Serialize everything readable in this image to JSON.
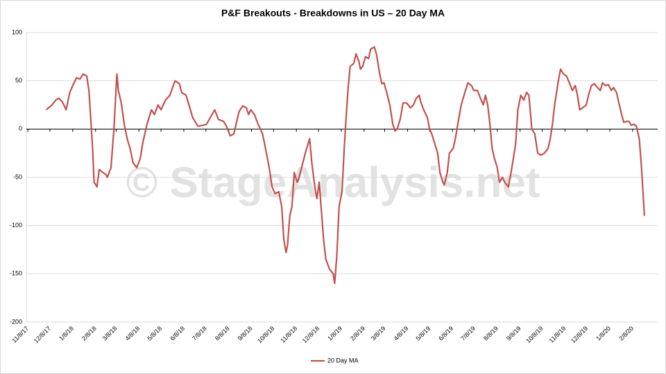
{
  "chart_data": {
    "type": "line",
    "title": "P&F Breakouts - Breakdowns in US – 20 Day MA",
    "watermark": "© StageAnalysis.net",
    "x": [
      "12/3/17",
      "12/11/17",
      "12/16/17",
      "12/20/17",
      "12/25/17",
      "12/30/17",
      "1/4/18",
      "1/8/18",
      "1/13/18",
      "1/18/18",
      "1/22/18",
      "1/27/18",
      "1/30/18",
      "2/2/18",
      "2/4/18",
      "2/6/18",
      "2/10/18",
      "2/13/18",
      "2/18/18",
      "2/22/18",
      "2/24/18",
      "3/1/18",
      "3/5/18",
      "3/9/18",
      "3/11/18",
      "3/15/18",
      "3/19/18",
      "3/23/18",
      "3/27/18",
      "3/31/18",
      "4/5/18",
      "4/10/18",
      "4/13/18",
      "4/19/18",
      "4/25/18",
      "4/29/18",
      "5/4/18",
      "5/8/18",
      "5/14/18",
      "5/20/18",
      "5/27/18",
      "6/2/18",
      "6/5/18",
      "6/11/18",
      "6/15/18",
      "6/20/18",
      "6/27/18",
      "7/4/18",
      "7/9/18",
      "7/14/18",
      "7/20/18",
      "7/25/18",
      "8/1/18",
      "8/5/18",
      "8/10/18",
      "8/15/18",
      "8/18/18",
      "8/22/18",
      "8/27/18",
      "9/1/18",
      "9/4/18",
      "9/7/18",
      "9/12/18",
      "9/17/18",
      "9/23/18",
      "9/27/18",
      "10/2/18",
      "10/6/18",
      "10/10/18",
      "10/15/18",
      "10/19/18",
      "10/22/18",
      "10/25/18",
      "10/27/18",
      "10/30/18",
      "11/2/18",
      "11/5/18",
      "11/9/18",
      "11/11/18",
      "11/15/18",
      "11/20/18",
      "11/26/18",
      "11/29/18",
      "12/3/18",
      "12/6/18",
      "12/9/18",
      "12/12/18",
      "12/15/18",
      "12/18/18",
      "12/23/18",
      "12/28/18",
      "12/30/18",
      "1/2/19",
      "1/5/19",
      "1/9/19",
      "1/12/19",
      "1/14/19",
      "1/17/19",
      "1/20/19",
      "1/25/19",
      "1/28/19",
      "2/1/19",
      "2/3/19",
      "2/6/19",
      "2/10/19",
      "2/14/19",
      "2/17/19",
      "2/22/19",
      "2/25/19",
      "3/1/19",
      "3/4/19",
      "3/7/19",
      "3/11/19",
      "3/15/19",
      "3/19/19",
      "3/22/19",
      "3/25/19",
      "3/29/19",
      "4/2/19",
      "4/7/19",
      "4/12/19",
      "4/16/19",
      "4/20/19",
      "4/24/19",
      "4/26/19",
      "4/30/19",
      "5/5/19",
      "5/8/19",
      "5/11/19",
      "5/15/19",
      "5/19/19",
      "5/22/19",
      "5/26/19",
      "5/28/19",
      "6/1/19",
      "6/4/19",
      "6/9/19",
      "6/12/19",
      "6/16/19",
      "6/20/19",
      "6/25/19",
      "6/29/19",
      "7/4/19",
      "7/7/19",
      "7/12/19",
      "7/16/19",
      "7/20/19",
      "7/23/19",
      "7/26/19",
      "7/29/19",
      "8/1/19",
      "8/4/19",
      "8/8/19",
      "8/11/19",
      "8/15/19",
      "8/18/19",
      "8/23/19",
      "8/26/19",
      "8/30/19",
      "9/2/19",
      "9/5/19",
      "9/9/19",
      "9/13/19",
      "9/17/19",
      "9/20/19",
      "9/24/19",
      "9/28/19",
      "10/2/19",
      "10/6/19",
      "10/11/19",
      "10/16/19",
      "10/19/19",
      "10/22/19",
      "10/25/19",
      "10/30/19",
      "11/2/19",
      "11/6/19",
      "11/10/19",
      "11/14/19",
      "11/18/19",
      "11/22/19",
      "11/25/19",
      "11/28/19",
      "12/2/19",
      "12/7/19",
      "12/10/19",
      "12/14/19",
      "12/18/19",
      "12/22/19",
      "12/26/19",
      "12/29/19",
      "1/2/20",
      "1/6/20",
      "1/10/20",
      "1/13/20",
      "1/17/20",
      "1/21/20",
      "1/24/20",
      "1/27/20",
      "1/31/20",
      "2/3/20",
      "2/6/20",
      "2/10/20",
      "2/13/20",
      "2/17/20",
      "2/20/20",
      "2/24/20"
    ],
    "series": [
      {
        "name": "20 Day MA",
        "color": "#c0504d",
        "values": [
          20,
          25,
          30,
          32,
          28,
          20,
          38,
          45,
          53,
          52,
          57,
          55,
          40,
          5,
          -20,
          -55,
          -60,
          -42,
          -45,
          -47,
          -50,
          -40,
          0,
          57,
          40,
          27,
          5,
          -10,
          -20,
          -35,
          -40,
          -30,
          -15,
          5,
          20,
          15,
          25,
          20,
          30,
          35,
          50,
          47,
          38,
          35,
          25,
          12,
          3,
          4,
          5,
          12,
          20,
          10,
          8,
          3,
          -7,
          -5,
          5,
          18,
          24,
          22,
          15,
          20,
          15,
          5,
          -5,
          -20,
          -40,
          -60,
          -67,
          -65,
          -80,
          -115,
          -128,
          -120,
          -90,
          -80,
          -45,
          -55,
          -52,
          -40,
          -25,
          -10,
          -35,
          -60,
          -72,
          -55,
          -85,
          -115,
          -135,
          -145,
          -150,
          -160,
          -130,
          -80,
          -65,
          -20,
          5,
          40,
          65,
          68,
          78,
          70,
          62,
          65,
          75,
          73,
          83,
          85,
          77,
          58,
          47,
          48,
          37,
          25,
          5,
          -2,
          0,
          10,
          27,
          27,
          22,
          25,
          32,
          35,
          28,
          20,
          12,
          0,
          -5,
          -15,
          -25,
          -45,
          -55,
          -58,
          -45,
          -25,
          -20,
          -10,
          8,
          25,
          38,
          48,
          45,
          40,
          40,
          32,
          25,
          35,
          25,
          5,
          -20,
          -30,
          -40,
          -55,
          -50,
          -55,
          -60,
          -48,
          -30,
          -15,
          20,
          35,
          30,
          38,
          35,
          0,
          -5,
          -25,
          -27,
          -25,
          -20,
          -10,
          5,
          25,
          50,
          62,
          57,
          55,
          48,
          40,
          45,
          35,
          20,
          22,
          25,
          35,
          45,
          47,
          43,
          40,
          48,
          45,
          46,
          40,
          43,
          38,
          25,
          15,
          7,
          8,
          8,
          4,
          5,
          3,
          -10,
          -40,
          -90
        ]
      }
    ],
    "xlim": [
      "11/6/17",
      "3/13/20"
    ],
    "xticks": [
      "11/8/17",
      "12/8/17",
      "1/8/18",
      "2/8/18",
      "3/8/18",
      "4/8/18",
      "5/8/18",
      "6/8/18",
      "7/8/18",
      "8/8/18",
      "9/8/18",
      "10/8/18",
      "11/8/18",
      "12/8/18",
      "1/8/19",
      "2/8/19",
      "3/8/19",
      "4/8/19",
      "5/8/19",
      "6/8/19",
      "7/8/19",
      "8/8/19",
      "9/8/19",
      "10/8/19",
      "11/8/19",
      "12/8/19",
      "1/8/20",
      "2/8/20"
    ],
    "ylim": [
      -200,
      100
    ],
    "yticks": [
      100,
      50,
      0,
      -50,
      -100,
      -150,
      -200
    ],
    "grid": true,
    "legend": "bottom"
  }
}
